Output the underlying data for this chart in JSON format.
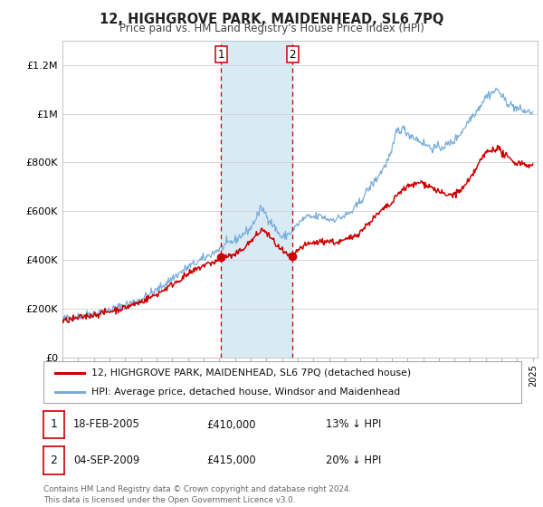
{
  "title": "12, HIGHGROVE PARK, MAIDENHEAD, SL6 7PQ",
  "subtitle": "Price paid vs. HM Land Registry's House Price Index (HPI)",
  "legend_line1": "12, HIGHGROVE PARK, MAIDENHEAD, SL6 7PQ (detached house)",
  "legend_line2": "HPI: Average price, detached house, Windsor and Maidenhead",
  "sale1_label": "1",
  "sale1_date": "18-FEB-2005",
  "sale1_price": "£410,000",
  "sale1_hpi": "13% ↓ HPI",
  "sale2_label": "2",
  "sale2_date": "04-SEP-2009",
  "sale2_price": "£415,000",
  "sale2_hpi": "20% ↓ HPI",
  "footer": "Contains HM Land Registry data © Crown copyright and database right 2024.\nThis data is licensed under the Open Government Licence v3.0.",
  "red_color": "#cc0000",
  "blue_color": "#7aaedb",
  "shade_color": "#daeaf5",
  "grid_color": "#d0d0d0",
  "ylabel_ticks": [
    "£0",
    "£200K",
    "£400K",
    "£600K",
    "£800K",
    "£1M",
    "£1.2M"
  ],
  "ytick_values": [
    0,
    200000,
    400000,
    600000,
    800000,
    1000000,
    1200000
  ],
  "ylim": [
    0,
    1300000
  ],
  "sale1_x": 2005.12,
  "sale1_y": 410000,
  "sale2_x": 2009.67,
  "sale2_y": 415000,
  "shade_x1": 2005.12,
  "shade_x2": 2009.67,
  "xlim_left": 1995.0,
  "xlim_right": 2025.3
}
